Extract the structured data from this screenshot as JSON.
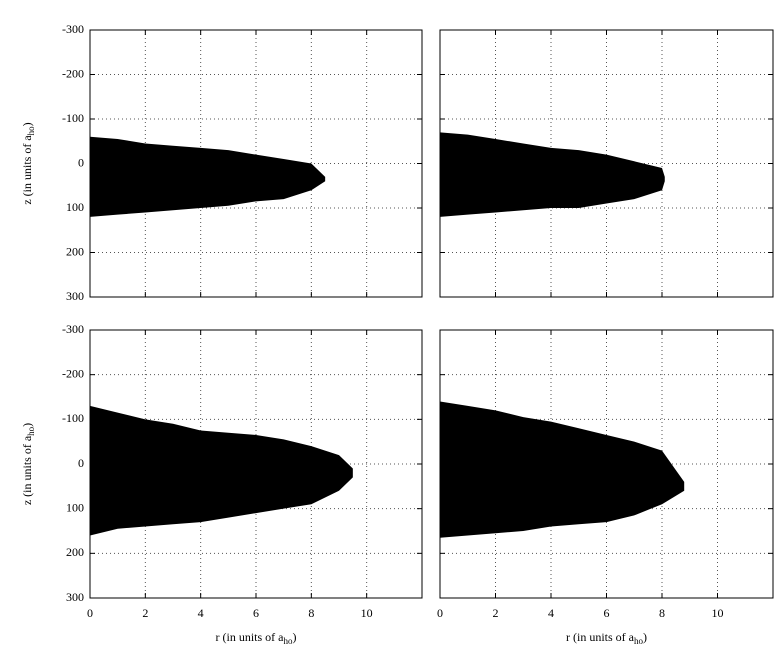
{
  "chart_data": [
    {
      "type": "band",
      "color": "#000000",
      "grid": true,
      "xtick_labels": false,
      "ytick_labels": true,
      "ylabel": {
        "main": "z (in units of a",
        "sub": "ho",
        "end": ")"
      },
      "xlim": [
        0,
        12
      ],
      "ylim": [
        -300,
        300
      ],
      "xticks": [
        0,
        2,
        4,
        6,
        8,
        10
      ],
      "yticks": [
        -300,
        -200,
        -100,
        0,
        100,
        200,
        300
      ],
      "x": [
        0,
        1,
        2,
        3,
        4,
        5,
        6,
        7,
        8,
        8.5
      ],
      "series": [
        {
          "values": [
            -60,
            -55,
            -45,
            -40,
            -35,
            -30,
            -20,
            -10,
            0,
            30
          ]
        },
        {
          "values": [
            120,
            115,
            110,
            105,
            100,
            95,
            85,
            80,
            60,
            40
          ]
        }
      ]
    },
    {
      "type": "band",
      "color": "#000000",
      "grid": true,
      "xtick_labels": false,
      "ytick_labels": false,
      "xlim": [
        0,
        12
      ],
      "ylim": [
        -300,
        300
      ],
      "xticks": [
        0,
        2,
        4,
        6,
        8,
        10
      ],
      "yticks": [
        -300,
        -200,
        -100,
        0,
        100,
        200,
        300
      ],
      "x": [
        0,
        1,
        2,
        3,
        4,
        5,
        6,
        7,
        8,
        8.1
      ],
      "series": [
        {
          "values": [
            -70,
            -65,
            -55,
            -45,
            -35,
            -30,
            -20,
            -5,
            10,
            30
          ]
        },
        {
          "values": [
            120,
            115,
            110,
            105,
            100,
            100,
            90,
            80,
            60,
            40
          ]
        }
      ]
    },
    {
      "type": "band",
      "color": "#000000",
      "grid": true,
      "xtick_labels": true,
      "ytick_labels": true,
      "ylabel": {
        "main": "z (in units of a",
        "sub": "ho",
        "end": ")"
      },
      "xlabel": {
        "main": "r (in units of a",
        "sub": "ho",
        "end": ")"
      },
      "xlim": [
        0,
        12
      ],
      "ylim": [
        -300,
        300
      ],
      "xticks": [
        0,
        2,
        4,
        6,
        8,
        10
      ],
      "yticks": [
        -300,
        -200,
        -100,
        0,
        100,
        200,
        300
      ],
      "x": [
        0,
        1,
        2,
        3,
        4,
        5,
        6,
        7,
        8,
        9,
        9.5
      ],
      "series": [
        {
          "values": [
            -130,
            -115,
            -100,
            -90,
            -75,
            -70,
            -65,
            -55,
            -40,
            -20,
            10
          ]
        },
        {
          "values": [
            160,
            145,
            140,
            135,
            130,
            120,
            110,
            100,
            90,
            60,
            30
          ]
        }
      ]
    },
    {
      "type": "band",
      "color": "#000000",
      "grid": true,
      "xtick_labels": true,
      "ytick_labels": false,
      "xlabel": {
        "main": "r (in units of a",
        "sub": "ho",
        "end": ")"
      },
      "xlim": [
        0,
        12
      ],
      "ylim": [
        -300,
        300
      ],
      "xticks": [
        0,
        2,
        4,
        6,
        8,
        10
      ],
      "yticks": [
        -300,
        -200,
        -100,
        0,
        100,
        200,
        300
      ],
      "x": [
        0,
        1,
        2,
        3,
        4,
        5,
        6,
        7,
        8,
        8.8
      ],
      "series": [
        {
          "values": [
            -140,
            -130,
            -120,
            -105,
            -95,
            -80,
            -65,
            -50,
            -30,
            40
          ]
        },
        {
          "values": [
            165,
            160,
            155,
            150,
            140,
            135,
            130,
            115,
            90,
            60
          ]
        }
      ]
    }
  ]
}
